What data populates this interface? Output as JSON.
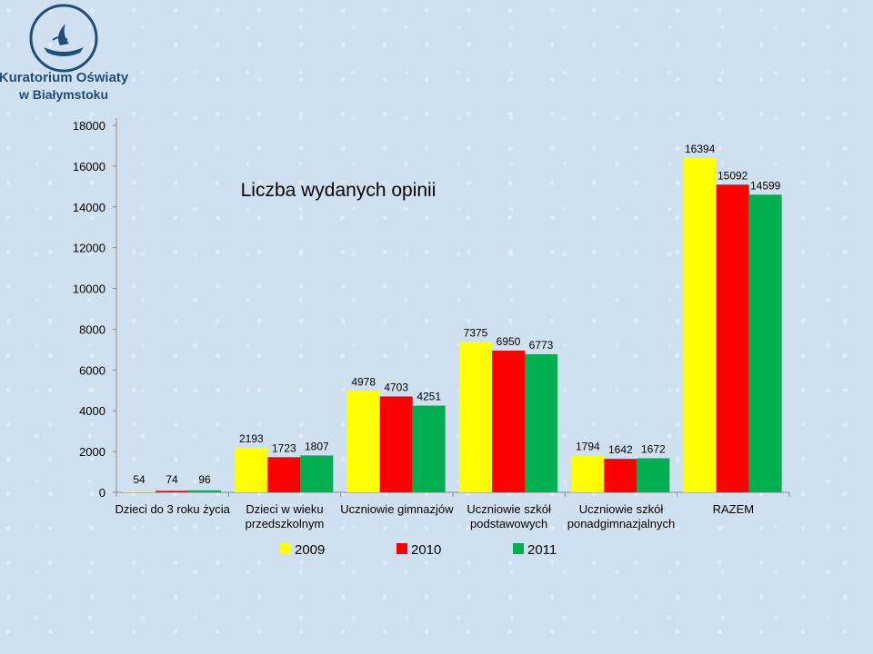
{
  "logo": {
    "line1": "Kuratorium Oświaty",
    "line2": "w Białymstoku"
  },
  "colors": {
    "2009": "#ffff00",
    "2010": "#ff0000",
    "2011": "#00b050",
    "brand": "#1f4e79"
  },
  "chart_data": {
    "type": "bar",
    "title": "Liczba wydanych opinii",
    "categories": [
      [
        "Dzieci do 3 roku życia"
      ],
      [
        "Dzieci w wieku",
        "przedszkolnym"
      ],
      [
        "Uczniowie gimnazjów"
      ],
      [
        "Uczniowie szkół",
        "podstawowych"
      ],
      [
        "Uczniowie szkół",
        "ponadgimnazjalnych"
      ],
      [
        "RAZEM"
      ]
    ],
    "series": [
      {
        "name": "2009",
        "values": [
          54,
          2193,
          4978,
          7375,
          1794,
          16394
        ]
      },
      {
        "name": "2010",
        "values": [
          74,
          1723,
          4703,
          6950,
          1642,
          15092
        ]
      },
      {
        "name": "2011",
        "values": [
          96,
          1807,
          4251,
          6773,
          1672,
          14599
        ]
      }
    ],
    "yticks": [
      0,
      2000,
      4000,
      6000,
      8000,
      10000,
      12000,
      14000,
      16000,
      18000
    ],
    "ylim": [
      0,
      18000
    ],
    "legend": "bottom",
    "grid": false
  }
}
